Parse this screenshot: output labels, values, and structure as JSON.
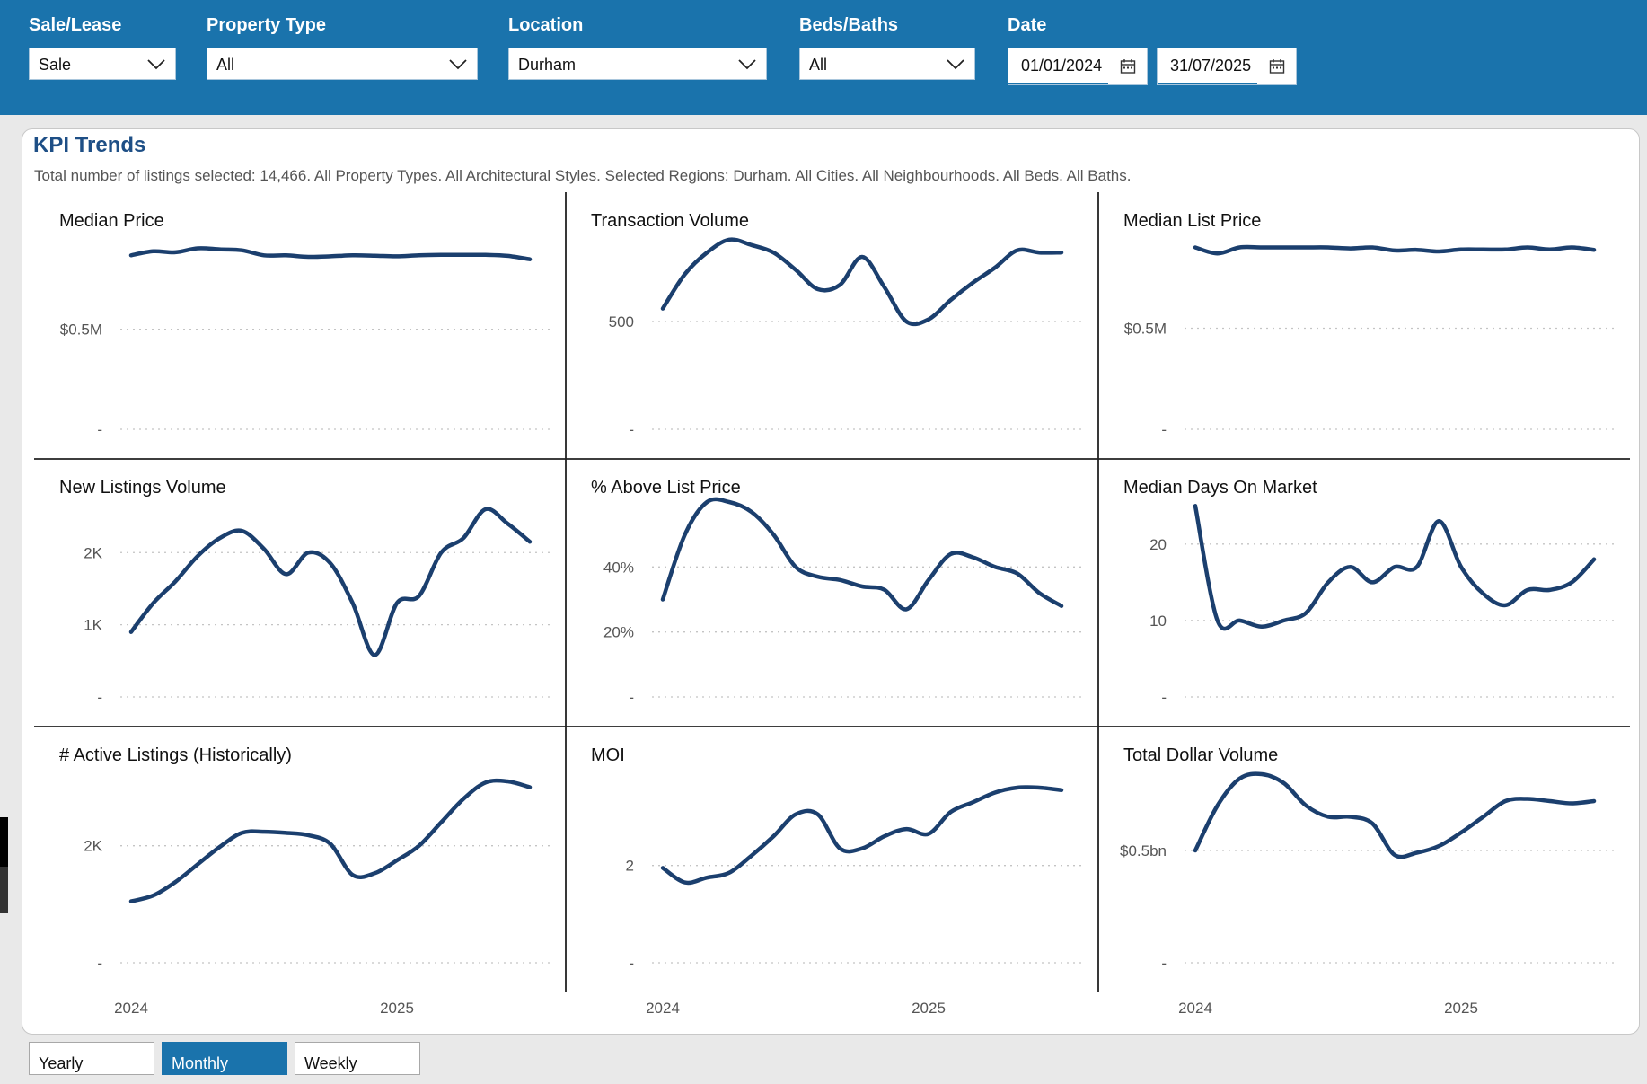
{
  "filters": {
    "sale_lease": {
      "label": "Sale/Lease",
      "value": "Sale"
    },
    "property_type": {
      "label": "Property Type",
      "value": "All"
    },
    "location": {
      "label": "Location",
      "value": "Durham"
    },
    "beds_baths": {
      "label": "Beds/Baths",
      "value": "All"
    },
    "date": {
      "label": "Date",
      "start": "01/01/2024",
      "end": "31/07/2025"
    }
  },
  "header": {
    "title": "KPI Trends",
    "subtitle": "Total number of listings selected: 14,466. All Property Types. All Architectural Styles. Selected Regions: Durham. All Cities. All Neighbourhoods. All Beds. All Baths."
  },
  "period_buttons": {
    "yearly": "Yearly",
    "monthly": "Monthly",
    "weekly": "Weekly",
    "selected": "Monthly"
  },
  "icons": {
    "dropdown": "chevron-down-icon",
    "date": "calendar-icon"
  },
  "colors": {
    "header_bg": "#1a73ac",
    "line": "#1b3f6e",
    "title": "#1e4f86"
  },
  "chart_data": [
    {
      "type": "line",
      "title": "Median Price",
      "ytick_labels": [
        "$0.5M",
        "-"
      ],
      "yticks": [
        500000,
        0
      ],
      "ylim": [
        0,
        970000
      ],
      "xtick_labels": [
        "2024",
        "2025"
      ],
      "xticks": [
        0,
        12
      ],
      "x": [
        0,
        1,
        2,
        3,
        4,
        5,
        6,
        7,
        8,
        9,
        10,
        11,
        12,
        13,
        14,
        15,
        16,
        17,
        18
      ],
      "values": [
        870000,
        890000,
        885000,
        905000,
        900000,
        895000,
        870000,
        870000,
        862000,
        865000,
        870000,
        868000,
        865000,
        870000,
        872000,
        872000,
        872000,
        867000,
        850000
      ]
    },
    {
      "type": "line",
      "title": "Transaction Volume",
      "ytick_labels": [
        "500",
        "-"
      ],
      "yticks": [
        500,
        0
      ],
      "ylim": [
        0,
        900
      ],
      "xtick_labels": [
        "2024",
        "2025"
      ],
      "xticks": [
        0,
        12
      ],
      "x": [
        0,
        1,
        2,
        3,
        4,
        5,
        6,
        7,
        8,
        9,
        10,
        11,
        12,
        13,
        14,
        15,
        16,
        17,
        18
      ],
      "values": [
        560,
        720,
        820,
        880,
        855,
        820,
        740,
        650,
        670,
        800,
        660,
        500,
        510,
        600,
        680,
        750,
        830,
        820,
        820
      ]
    },
    {
      "type": "line",
      "title": "Median List Price",
      "ytick_labels": [
        "$0.5M",
        "-"
      ],
      "yticks": [
        500000,
        0
      ],
      "ylim": [
        0,
        960000
      ],
      "xtick_labels": [
        "2024",
        "2025"
      ],
      "xticks": [
        0,
        12
      ],
      "x": [
        0,
        1,
        2,
        3,
        4,
        5,
        6,
        7,
        8,
        9,
        10,
        11,
        12,
        13,
        14,
        15,
        16,
        17,
        18
      ],
      "values": [
        900000,
        870000,
        900000,
        900000,
        900000,
        900000,
        900000,
        895000,
        900000,
        885000,
        888000,
        880000,
        890000,
        890000,
        890000,
        900000,
        890000,
        900000,
        888000
      ]
    },
    {
      "type": "line",
      "title": "New Listings Volume",
      "ytick_labels": [
        "2K",
        "1K",
        "-"
      ],
      "yticks": [
        2000,
        1000,
        0
      ],
      "ylim": [
        0,
        2700
      ],
      "xtick_labels": [
        "2024",
        "2025"
      ],
      "xticks": [
        0,
        12
      ],
      "x": [
        0,
        1,
        2,
        3,
        4,
        5,
        6,
        7,
        8,
        9,
        10,
        11,
        12,
        13,
        14,
        15,
        16,
        17,
        18
      ],
      "values": [
        900,
        1300,
        1600,
        1950,
        2200,
        2300,
        2050,
        1700,
        2000,
        1850,
        1300,
        580,
        1300,
        1400,
        2000,
        2200,
        2600,
        2400,
        2150
      ]
    },
    {
      "type": "line",
      "title": "% Above List Price",
      "ytick_labels": [
        "40%",
        "20%",
        "-"
      ],
      "yticks": [
        40,
        20,
        0
      ],
      "ylim": [
        0,
        60
      ],
      "xtick_labels": [
        "2024",
        "2025"
      ],
      "xticks": [
        0,
        12
      ],
      "x": [
        0,
        1,
        2,
        3,
        4,
        5,
        6,
        7,
        8,
        9,
        10,
        11,
        12,
        13,
        14,
        15,
        16,
        17,
        18
      ],
      "values": [
        30,
        50,
        60,
        60,
        57,
        50,
        40,
        37,
        36,
        34,
        33,
        27,
        36,
        44,
        43,
        40,
        38,
        32,
        28
      ]
    },
    {
      "type": "line",
      "title": "Median Days On Market",
      "ytick_labels": [
        "20",
        "10",
        "-"
      ],
      "yticks": [
        20,
        10,
        0
      ],
      "ylim": [
        0,
        25.5
      ],
      "xtick_labels": [
        "2024",
        "2025"
      ],
      "xticks": [
        0,
        12
      ],
      "x": [
        0,
        1,
        2,
        3,
        4,
        5,
        6,
        7,
        8,
        9,
        10,
        11,
        12,
        13,
        14,
        15,
        16,
        17,
        18
      ],
      "values": [
        25,
        10,
        10,
        9.2,
        10,
        11,
        15,
        17,
        15,
        17,
        17,
        23,
        17,
        13.5,
        12,
        14,
        14,
        15,
        18
      ]
    },
    {
      "type": "line",
      "title": "# Active Listings (Historically)",
      "ytick_labels": [
        "2K",
        "-"
      ],
      "yticks": [
        2000,
        0
      ],
      "ylim": [
        0,
        3300
      ],
      "xtick_labels": [
        "2024",
        "2025"
      ],
      "xticks": [
        0,
        12
      ],
      "x": [
        0,
        1,
        2,
        3,
        4,
        5,
        6,
        7,
        8,
        9,
        10,
        11,
        12,
        13,
        14,
        15,
        16,
        17,
        18
      ],
      "values": [
        1050,
        1150,
        1380,
        1680,
        1980,
        2220,
        2240,
        2220,
        2180,
        2030,
        1500,
        1530,
        1750,
        2000,
        2400,
        2800,
        3080,
        3100,
        3000
      ]
    },
    {
      "type": "line",
      "title": "MOI",
      "ytick_labels": [
        "2",
        "-"
      ],
      "yticks": [
        2,
        0
      ],
      "ylim": [
        0,
        3.97
      ],
      "xtick_labels": [
        "2024",
        "2025"
      ],
      "xticks": [
        0,
        12
      ],
      "x": [
        0,
        1,
        2,
        3,
        4,
        5,
        6,
        7,
        8,
        9,
        10,
        11,
        12,
        13,
        14,
        15,
        16,
        17,
        18
      ],
      "values": [
        1.95,
        1.65,
        1.75,
        1.85,
        2.2,
        2.6,
        3.05,
        3.05,
        2.35,
        2.35,
        2.6,
        2.75,
        2.65,
        3.1,
        3.3,
        3.5,
        3.6,
        3.6,
        3.55
      ]
    },
    {
      "type": "line",
      "title": "Total Dollar Volume",
      "ytick_labels": [
        "$0.5bn",
        "-"
      ],
      "yticks": [
        500000000,
        0
      ],
      "ylim": [
        0,
        860000000
      ],
      "xtick_labels": [
        "2024",
        "2025"
      ],
      "xticks": [
        0,
        12
      ],
      "x": [
        0,
        1,
        2,
        3,
        4,
        5,
        6,
        7,
        8,
        9,
        10,
        11,
        12,
        13,
        14,
        15,
        16,
        17,
        18
      ],
      "values": [
        500000000,
        700000000,
        820000000,
        840000000,
        800000000,
        700000000,
        650000000,
        650000000,
        620000000,
        480000000,
        490000000,
        520000000,
        580000000,
        650000000,
        720000000,
        730000000,
        720000000,
        710000000,
        720000000
      ]
    }
  ]
}
